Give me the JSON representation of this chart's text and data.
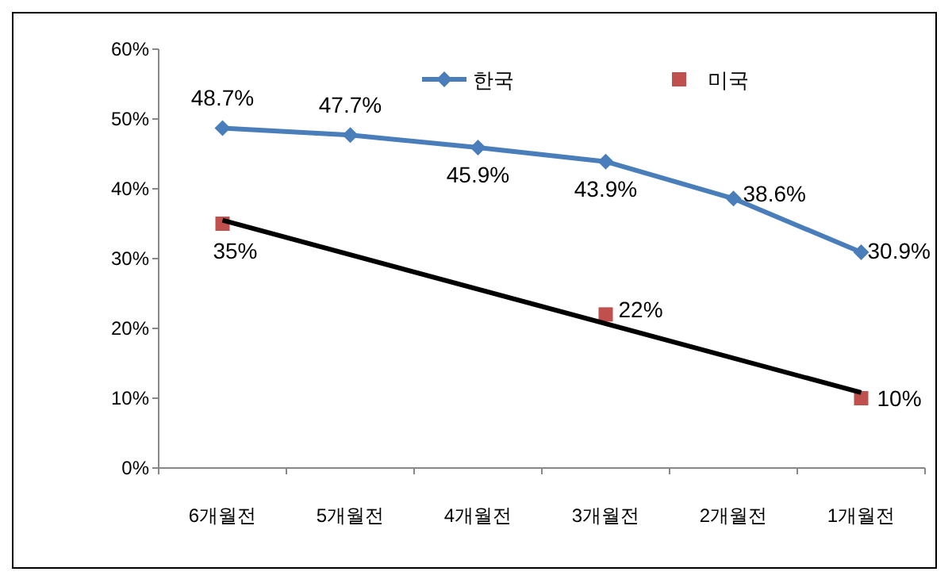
{
  "chart_data": {
    "type": "line",
    "categories": [
      "6개월전",
      "5개월전",
      "4개월전",
      "3개월전",
      "2개월전",
      "1개월전"
    ],
    "ylim": [
      0,
      60
    ],
    "yticks": [
      {
        "value": 0,
        "label": "0%"
      },
      {
        "value": 10,
        "label": "10%"
      },
      {
        "value": 20,
        "label": "20%"
      },
      {
        "value": 30,
        "label": "30%"
      },
      {
        "value": 40,
        "label": "40%"
      },
      {
        "value": 50,
        "label": "50%"
      },
      {
        "value": 60,
        "label": "60%"
      }
    ],
    "grid": false,
    "legend": "top",
    "series": [
      {
        "name": "한국",
        "marker": "diamond",
        "color": "#4a7ebb",
        "values": [
          48.7,
          47.7,
          45.9,
          43.9,
          38.6,
          30.9
        ],
        "value_labels": [
          "48.7%",
          "47.7%",
          "45.9%",
          "43.9%",
          "38.6%",
          "30.9%"
        ]
      },
      {
        "name": "미국",
        "type": "scatter",
        "marker": "square",
        "color": "#c0504d",
        "values": [
          35,
          null,
          null,
          22,
          null,
          10
        ],
        "value_labels": [
          "35%",
          null,
          null,
          "22%",
          null,
          "10%"
        ]
      },
      {
        "type": "line",
        "marker": "none",
        "color": "#000000",
        "x": [
          "6개월전",
          "1개월전"
        ],
        "values": [
          35.5,
          10.8
        ]
      }
    ]
  }
}
